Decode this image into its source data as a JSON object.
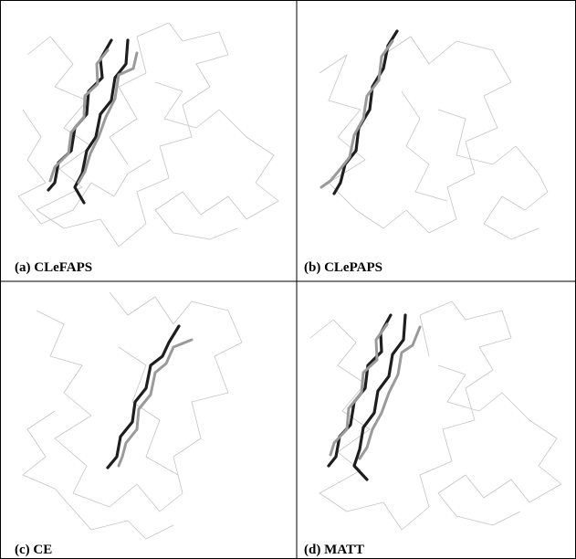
{
  "panels": [
    {
      "caption": "(a) CLeFAPS"
    },
    {
      "caption": "(b) CLePAPS"
    },
    {
      "caption": "(c) CE"
    },
    {
      "caption": "(d) MATT"
    }
  ]
}
